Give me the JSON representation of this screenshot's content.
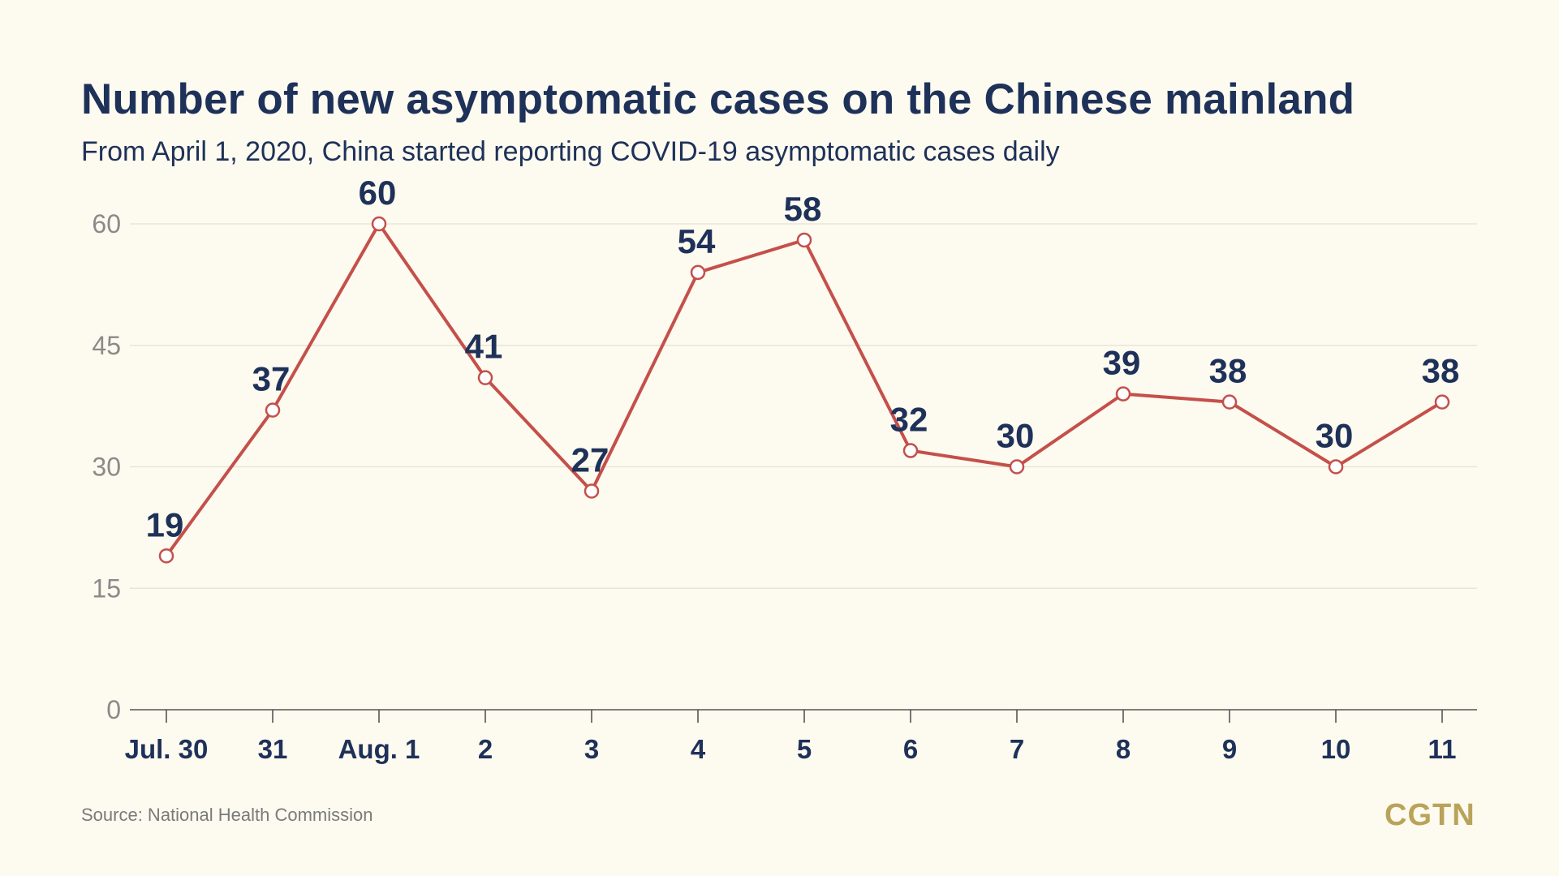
{
  "header": {
    "title": "Number of new asymptomatic cases on the Chinese mainland",
    "subtitle": "From April 1, 2020, China started reporting COVID-19 asymptomatic cases daily"
  },
  "footer": {
    "source": "Source: National Health Commission",
    "logo": "CGTN"
  },
  "colors": {
    "background": "#fdfaef",
    "line": "#c4504b",
    "text_dark": "#1e3159",
    "tick_text": "#8a8a8a",
    "grid": "#e6e1d2",
    "logo": "#b9a35a"
  },
  "chart_data": {
    "type": "line",
    "title": "Number of new asymptomatic cases on the Chinese mainland",
    "subtitle": "From April 1, 2020, China started reporting COVID-19 asymptomatic cases daily",
    "categories": [
      "Jul. 30",
      "31",
      "Aug. 1",
      "2",
      "3",
      "4",
      "5",
      "6",
      "7",
      "8",
      "9",
      "10",
      "11"
    ],
    "values": [
      19,
      37,
      60,
      41,
      27,
      54,
      58,
      32,
      30,
      39,
      38,
      30,
      38
    ],
    "yticks": [
      0,
      15,
      30,
      45,
      60
    ],
    "ylim": [
      0,
      60
    ],
    "xlabel": "",
    "ylabel": "",
    "grid": true,
    "data_labels": true
  }
}
